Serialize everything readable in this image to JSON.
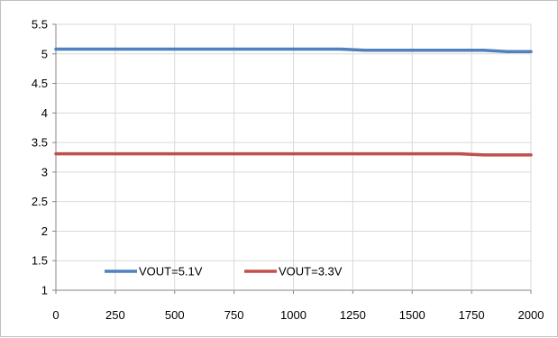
{
  "chart_data": {
    "type": "line",
    "title": "",
    "xlabel": "",
    "ylabel": "",
    "xlim": [
      0,
      2000
    ],
    "ylim": [
      1,
      5.5
    ],
    "x_ticks": [
      0,
      250,
      500,
      750,
      1000,
      1250,
      1500,
      1750,
      2000
    ],
    "y_ticks": [
      1,
      1.5,
      2,
      2.5,
      3,
      3.5,
      4,
      4.5,
      5,
      5.5
    ],
    "grid": true,
    "legend_position": "bottom-left-inside",
    "series": [
      {
        "name": "VOUT=5.1V",
        "color": "#4f81bd",
        "x": [
          0,
          250,
          500,
          750,
          1000,
          1200,
          1300,
          1500,
          1750,
          1800,
          1900,
          2000
        ],
        "y": [
          5.08,
          5.08,
          5.08,
          5.08,
          5.08,
          5.08,
          5.06,
          5.06,
          5.06,
          5.06,
          5.04,
          5.04
        ]
      },
      {
        "name": "VOUT=3.3V",
        "color": "#c0504d",
        "x": [
          0,
          250,
          500,
          750,
          1000,
          1250,
          1500,
          1700,
          1800,
          1900,
          2000
        ],
        "y": [
          3.31,
          3.31,
          3.31,
          3.31,
          3.31,
          3.31,
          3.31,
          3.31,
          3.29,
          3.29,
          3.29
        ]
      }
    ]
  }
}
